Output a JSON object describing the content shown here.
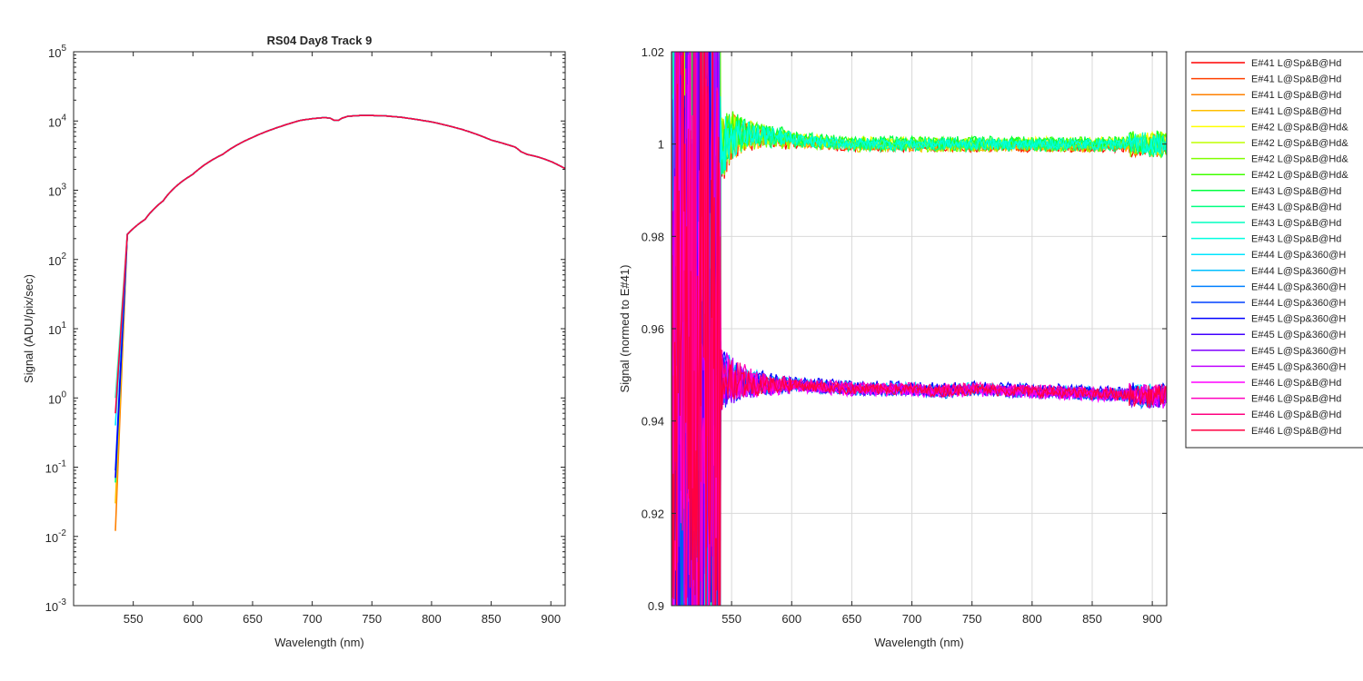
{
  "chart_data": [
    {
      "type": "line",
      "title": "RS04 Day8 Track 9",
      "xlabel": "Wavelength (nm)",
      "ylabel": "Signal (ADU/pix/sec)",
      "yscale": "log",
      "xlim": [
        500,
        912
      ],
      "ylim": [
        0.001,
        100000
      ],
      "xticks": [
        550,
        600,
        650,
        700,
        750,
        800,
        850,
        900
      ],
      "yticks": [
        {
          "value": 0.001,
          "base": "10",
          "exp": "-3"
        },
        {
          "value": 0.01,
          "base": "10",
          "exp": "-2"
        },
        {
          "value": 0.1,
          "base": "10",
          "exp": "-1"
        },
        {
          "value": 1,
          "base": "10",
          "exp": "0"
        },
        {
          "value": 10,
          "base": "10",
          "exp": "1"
        },
        {
          "value": 100,
          "base": "10",
          "exp": "2"
        },
        {
          "value": 1000,
          "base": "10",
          "exp": "3"
        },
        {
          "value": 10000,
          "base": "10",
          "exp": "4"
        },
        {
          "value": 100000,
          "base": "10",
          "exp": "5"
        }
      ],
      "grid": false,
      "series_note": "24 overlapping spectra, all nearly identical",
      "x": [
        535,
        537,
        540,
        543,
        545,
        550,
        560,
        575,
        600,
        625,
        650,
        675,
        690,
        700,
        710,
        715,
        718,
        722,
        725,
        730,
        740,
        750,
        760,
        775,
        800,
        825,
        850,
        870,
        875,
        880,
        890,
        900,
        912
      ],
      "y": [
        0.05,
        3,
        60,
        200,
        230,
        280,
        380,
        700,
        1700,
        3300,
        5800,
        8500,
        10200,
        10800,
        11200,
        11000,
        10300,
        10200,
        11000,
        11700,
        12000,
        12000,
        11900,
        11300,
        9700,
        7600,
        5300,
        4200,
        3600,
        3300,
        3000,
        2600,
        2050
      ]
    },
    {
      "type": "line",
      "title": "",
      "xlabel": "Wavelength (nm)",
      "ylabel": "Signal (normed to E#41)",
      "xlim": [
        500,
        912
      ],
      "ylim": [
        0.9,
        1.02
      ],
      "xticks": [
        550,
        600,
        650,
        700,
        750,
        800,
        850,
        900
      ],
      "yticks": [
        0.9,
        0.92,
        0.94,
        0.96,
        0.98,
        1,
        1.02
      ],
      "ytick_labels": [
        "0.9",
        "0.92",
        "0.94",
        "0.96",
        "0.98",
        "1",
        "1.02"
      ],
      "grid": true,
      "legend_position": "outside-right",
      "upper_group": {
        "x": [
          540,
          550,
          575,
          600,
          650,
          700,
          750,
          800,
          850,
          900,
          912
        ],
        "y": [
          0.998,
          1.002,
          1.002,
          1.001,
          1.0,
          1.0,
          1.0,
          1.0,
          1.0,
          1.0,
          1.0
        ]
      },
      "lower_group": {
        "x": [
          540,
          550,
          575,
          600,
          650,
          700,
          725,
          750,
          800,
          850,
          900,
          912
        ],
        "y": [
          0.95,
          0.949,
          0.948,
          0.948,
          0.947,
          0.947,
          0.9465,
          0.947,
          0.9465,
          0.946,
          0.9455,
          0.9455
        ]
      },
      "series": [
        {
          "name": "E#41 L@Sp&B@Hd",
          "color": "#ff0000",
          "group": "upper"
        },
        {
          "name": "E#41 L@Sp&B@Hd",
          "color": "#ff4000",
          "group": "upper"
        },
        {
          "name": "E#41 L@Sp&B@Hd",
          "color": "#ff8000",
          "group": "upper"
        },
        {
          "name": "E#41 L@Sp&B@Hd",
          "color": "#ffbf00",
          "group": "upper"
        },
        {
          "name": "E#42 L@Sp&B@Hd&",
          "color": "#ffff00",
          "group": "upper"
        },
        {
          "name": "E#42 L@Sp&B@Hd&",
          "color": "#bfff00",
          "group": "upper"
        },
        {
          "name": "E#42 L@Sp&B@Hd&",
          "color": "#80ff00",
          "group": "upper"
        },
        {
          "name": "E#42 L@Sp&B@Hd&",
          "color": "#40ff00",
          "group": "upper"
        },
        {
          "name": "E#43 L@Sp&B@Hd",
          "color": "#00ff40",
          "group": "upper"
        },
        {
          "name": "E#43 L@Sp&B@Hd",
          "color": "#00ff80",
          "group": "upper"
        },
        {
          "name": "E#43 L@Sp&B@Hd",
          "color": "#00ffbf",
          "group": "upper"
        },
        {
          "name": "E#43 L@Sp&B@Hd",
          "color": "#00ffe0",
          "group": "upper"
        },
        {
          "name": "E#44 L@Sp&360@H",
          "color": "#00e5ff",
          "group": "lower"
        },
        {
          "name": "E#44 L@Sp&360@H",
          "color": "#00bfff",
          "group": "lower"
        },
        {
          "name": "E#44 L@Sp&360@H",
          "color": "#0080ff",
          "group": "lower"
        },
        {
          "name": "E#44 L@Sp&360@H",
          "color": "#0040ff",
          "group": "lower"
        },
        {
          "name": "E#45 L@Sp&360@H",
          "color": "#0000ff",
          "group": "lower"
        },
        {
          "name": "E#45 L@Sp&360@H",
          "color": "#4000ff",
          "group": "lower"
        },
        {
          "name": "E#45 L@Sp&360@H",
          "color": "#8000ff",
          "group": "lower"
        },
        {
          "name": "E#45 L@Sp&360@H",
          "color": "#bf00ff",
          "group": "lower"
        },
        {
          "name": "E#46 L@Sp&B@Hd",
          "color": "#ff00ff",
          "group": "lower"
        },
        {
          "name": "E#46 L@Sp&B@Hd",
          "color": "#ff00bf",
          "group": "lower"
        },
        {
          "name": "E#46 L@Sp&B@Hd",
          "color": "#ff0080",
          "group": "lower"
        },
        {
          "name": "E#46 L@Sp&B@Hd",
          "color": "#ff0040",
          "group": "lower"
        }
      ]
    }
  ]
}
